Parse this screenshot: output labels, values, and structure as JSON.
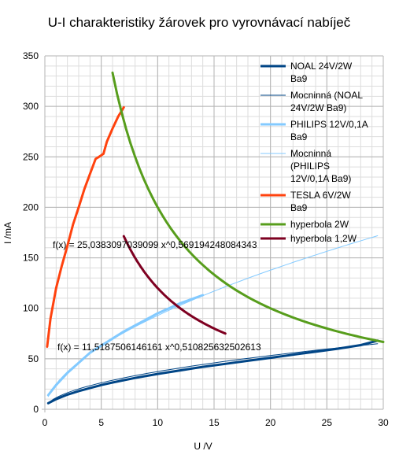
{
  "chart_data": {
    "type": "line",
    "title": "U-I charakteristiky žárovek pro vyrovnávací nabíječ",
    "xlabel": "U /V",
    "ylabel": "I /mA",
    "xlim": [
      0,
      30
    ],
    "ylim": [
      0,
      350
    ],
    "xticks": [
      0,
      5,
      10,
      15,
      20,
      25,
      30
    ],
    "yticks": [
      0,
      50,
      100,
      150,
      200,
      250,
      300,
      350
    ],
    "grid": true,
    "legend_position": "right",
    "series": [
      {
        "name": "NOAL 24V/2W Ba9",
        "color": "#004586",
        "kind": "data",
        "x": [
          0.3,
          1,
          2,
          3,
          4,
          5,
          6,
          8,
          10,
          12,
          14,
          16,
          18,
          20,
          22,
          24,
          26,
          28,
          29.5
        ],
        "y": [
          6,
          10,
          14.5,
          18,
          21,
          24,
          26.5,
          31,
          35,
          38.5,
          42,
          45,
          48,
          51,
          54,
          57,
          60,
          63.5,
          68
        ]
      },
      {
        "name": "Mocninná (NOAL 24V/2W Ba9)",
        "color": "#004586",
        "kind": "trend",
        "coef": 11.5187506146161,
        "exp": 0.510825632502613,
        "xrange": [
          0.3,
          29.5
        ]
      },
      {
        "name": "PHILIPS 12V/0,1A Ba9",
        "color": "#83caff",
        "kind": "data",
        "x": [
          0.3,
          1,
          2,
          3,
          4,
          5,
          6,
          7,
          8,
          9,
          10,
          11,
          12,
          13,
          14
        ],
        "y": [
          14,
          24,
          36,
          46,
          56,
          63,
          70,
          77,
          83,
          89,
          95,
          100,
          105,
          109,
          113
        ]
      },
      {
        "name": "Mocninná (PHILIPS 12V/0,1A Ba9)",
        "color": "#83caff",
        "kind": "trend",
        "coef": 25.0383097039099,
        "exp": 0.569194248084343,
        "xrange": [
          0.3,
          29.5
        ]
      },
      {
        "name": "TESLA 6V/2W Ba9",
        "color": "#ff420e",
        "kind": "data",
        "x": [
          0.2,
          0.5,
          1,
          1.5,
          2,
          2.5,
          3,
          3.5,
          4,
          4.5,
          4.8,
          5.2,
          5.5,
          6,
          6.5,
          7
        ],
        "y": [
          62,
          90,
          120,
          142,
          162,
          183,
          200,
          218,
          233,
          248,
          250,
          253,
          265,
          278,
          290,
          299
        ]
      },
      {
        "name": "hyperbola 2W",
        "color": "#579d1c",
        "kind": "hyperbola",
        "power_mw": 2000,
        "xrange": [
          6,
          30
        ]
      },
      {
        "name": "hyperbola 1,2W",
        "color": "#7e0021",
        "kind": "hyperbola",
        "power_mw": 1200,
        "xrange": [
          7,
          16
        ]
      }
    ],
    "annotations": [
      {
        "text": "f(x) = 25,0383097039099 x^0,569194248084343"
      },
      {
        "text": "f(x) = 11,5187506146161 x^0,510825632502613"
      }
    ]
  }
}
